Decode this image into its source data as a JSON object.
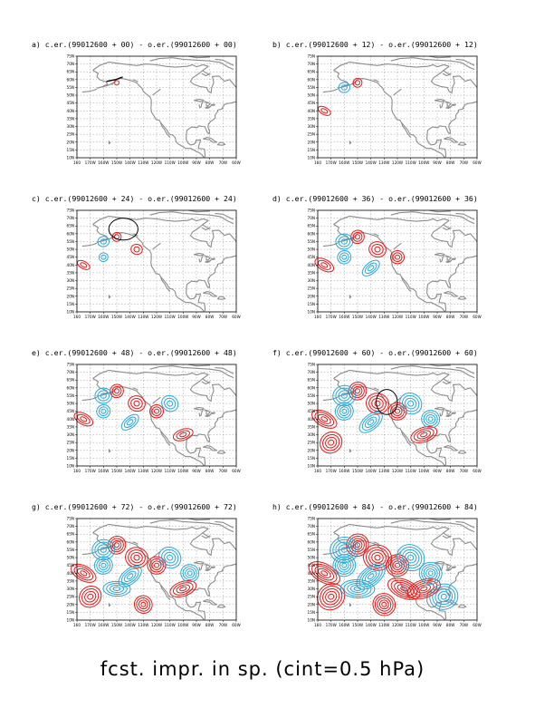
{
  "figure": {
    "caption": "fcst. impr. in sp. (cint=0.5 hPa)",
    "lat_labels": [
      "75N",
      "70N",
      "65N",
      "60N",
      "55N",
      "50N",
      "45N",
      "40N",
      "35N",
      "30N",
      "25N",
      "20N",
      "15N",
      "10N"
    ],
    "lon_labels": [
      "160",
      "170W",
      "160W",
      "150W",
      "140W",
      "130W",
      "120W",
      "110W",
      "100W",
      "90W",
      "80W",
      "70W",
      "60W"
    ],
    "panels": [
      {
        "id": "a",
        "title": "a) c.er.(99012600 + 00) - o.er.(99012600 + 00)",
        "ellipse": null
      },
      {
        "id": "b",
        "title": "b) c.er.(99012600 + 12) - o.er.(99012600 + 12)",
        "ellipse": null
      },
      {
        "id": "c",
        "title": "c) c.er.(99012600 + 24) - o.er.(99012600 + 24)",
        "ellipse": {
          "lon": -145,
          "lat": 63,
          "rlon": 11,
          "rlat": 7
        }
      },
      {
        "id": "d",
        "title": "d) c.er.(99012600 + 36) - o.er.(99012600 + 36)",
        "ellipse": null
      },
      {
        "id": "e",
        "title": "e) c.er.(99012600 + 48) - o.er.(99012600 + 48)",
        "ellipse": null
      },
      {
        "id": "f",
        "title": "f) c.er.(99012600 + 60) - o.er.(99012600 + 60)",
        "ellipse": {
          "lon": -128,
          "lat": 51,
          "rlon": 8,
          "rlat": 8
        }
      },
      {
        "id": "g",
        "title": "g) c.er.(99012600 + 72) - o.er.(99012600 + 72)",
        "ellipse": null
      },
      {
        "id": "h",
        "title": "h) c.er.(99012600 + 84) - o.er.(99012600 + 84)",
        "ellipse": null
      }
    ]
  },
  "colors": {
    "positive": "#e01b1b",
    "negative": "#2ba8d6",
    "coast": "#8c8c8c",
    "grid": "#9a9a9a"
  }
}
